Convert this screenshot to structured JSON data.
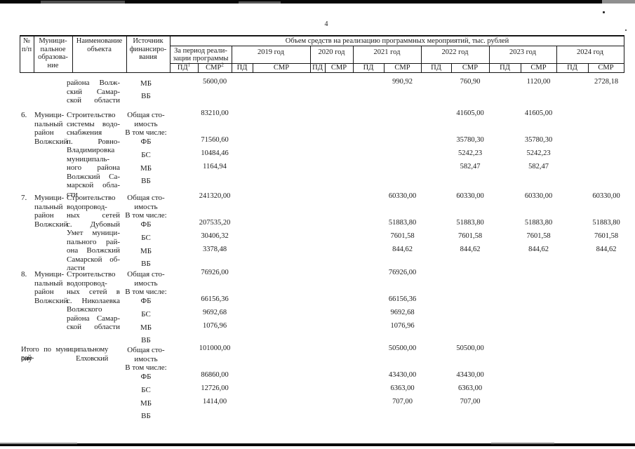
{
  "page": {
    "number": "4"
  },
  "table": {
    "header": {
      "amount_title": "Объем средств на реализацию программных мероприятий, тыс. рублей",
      "num": [
        "№",
        "п/п"
      ],
      "municipality": [
        "Муници-",
        "пальное",
        "образова-",
        "ние"
      ],
      "object": [
        "Наименование",
        "объекта"
      ],
      "source": [
        "Источник",
        "финансиро-",
        "вания"
      ],
      "period": [
        "За период реали-",
        "зации программы"
      ],
      "pd": "ПД",
      "pd_sup": "1",
      "smr": "СМР",
      "smr_sup": "2",
      "years": [
        "2019 год",
        "2020 год",
        "2021 год",
        "2022 год",
        "2023 год",
        "2024 год"
      ]
    },
    "groups": [
      {
        "continued": true,
        "object": [
          "района Волж-",
          "ский Самар-",
          "ской области"
        ],
        "finance": [
          {
            "slot": "mb",
            "label": [
              "МБ"
            ],
            "values": {
              "period": "5600,00",
              "y2021": "990,92",
              "y2022": "760,90",
              "y2023": "1120,00",
              "y2024": "2728,18"
            }
          },
          {
            "slot": "vb",
            "label": [
              "ВБ"
            ]
          }
        ]
      },
      {
        "num": "6.",
        "municipality": [
          "Муници-",
          "пальный",
          "район",
          "Волжский"
        ],
        "object": [
          "Строительство",
          "системы водо-",
          "снабжения",
          "п. Ровно-",
          "Владимировка",
          "муниципаль-",
          "ного района",
          "Волжский Са-",
          "марской обла-",
          "сти"
        ],
        "finance": [
          {
            "slot": "total",
            "label": [
              "Общая сто-",
              "имость"
            ],
            "values": {
              "period": "83210,00",
              "y2022": "41605,00",
              "y2023": "41605,00"
            }
          },
          {
            "slot": "incl",
            "label": [
              "В том числе:"
            ]
          },
          {
            "slot": "fb",
            "label": [
              "ФБ"
            ],
            "values": {
              "period": "71560,60",
              "y2022": "35780,30",
              "y2023": "35780,30"
            }
          },
          {
            "slot": "bs",
            "label": [
              "БС"
            ],
            "values": {
              "period": "10484,46",
              "y2022": "5242,23",
              "y2023": "5242,23"
            }
          },
          {
            "slot": "mb",
            "label": [
              "МБ"
            ],
            "values": {
              "period": "1164,94",
              "y2022": "582,47",
              "y2023": "582,47"
            }
          },
          {
            "slot": "vb",
            "label": [
              "ВБ"
            ]
          }
        ]
      },
      {
        "num": "7.",
        "municipality": [
          "Муници-",
          "пальный",
          "район",
          "Волжский"
        ],
        "object": [
          "Строительство",
          "водопровод-",
          "ных сетей",
          "с. Дубовый",
          "Умет муници-",
          "пального рай-",
          "она Волжский",
          "Самарской об-",
          "ласти"
        ],
        "finance": [
          {
            "slot": "total",
            "label": [
              "Общая сто-",
              "имость"
            ],
            "values": {
              "period": "241320,00",
              "y2021": "60330,00",
              "y2022": "60330,00",
              "y2023": "60330,00",
              "y2024": "60330,00"
            }
          },
          {
            "slot": "incl",
            "label": [
              "В том числе:"
            ]
          },
          {
            "slot": "fb",
            "label": [
              "ФБ"
            ],
            "values": {
              "period": "207535,20",
              "y2021": "51883,80",
              "y2022": "51883,80",
              "y2023": "51883,80",
              "y2024": "51883,80"
            }
          },
          {
            "slot": "bs",
            "label": [
              "БС"
            ],
            "values": {
              "period": "30406,32",
              "y2021": "7601,58",
              "y2022": "7601,58",
              "y2023": "7601,58",
              "y2024": "7601,58"
            }
          },
          {
            "slot": "mb",
            "label": [
              "МБ"
            ],
            "values": {
              "period": "3378,48",
              "y2021": "844,62",
              "y2022": "844,62",
              "y2023": "844,62",
              "y2024": "844,62"
            }
          },
          {
            "slot": "vb",
            "label": [
              "ВБ"
            ]
          }
        ]
      },
      {
        "num": "8.",
        "municipality": [
          "Муници-",
          "пальный",
          "район",
          "Волжский"
        ],
        "object": [
          "Строительство",
          "водопровод-",
          "ных сетей в",
          "с. Николаевка",
          "Волжского",
          "района Самар-",
          "ской области"
        ],
        "finance": [
          {
            "slot": "total",
            "label": [
              "Общая сто-",
              "имость"
            ],
            "values": {
              "period": "76926,00",
              "y2021": "76926,00"
            }
          },
          {
            "slot": "incl",
            "label": [
              "В том числе:"
            ]
          },
          {
            "slot": "fb",
            "label": [
              "ФБ"
            ],
            "values": {
              "period": "66156,36",
              "y2021": "66156,36"
            }
          },
          {
            "slot": "bs",
            "label": [
              "БС"
            ],
            "values": {
              "period": "9692,68",
              "y2021": "9692,68"
            }
          },
          {
            "slot": "mb",
            "label": [
              "МБ"
            ],
            "values": {
              "period": "1076,96",
              "y2021": "1076,96"
            }
          },
          {
            "slot": "vb",
            "label": [
              "ВБ"
            ]
          }
        ]
      },
      {
        "title": [
          "Итого по муниципальному рай-",
          "ону Елховский"
        ],
        "finance": [
          {
            "slot": "total",
            "label": [
              "Общая сто-",
              "имость"
            ],
            "values": {
              "period": "101000,00",
              "y2021": "50500,00",
              "y2022": "50500,00"
            }
          },
          {
            "slot": "incl",
            "label": [
              "В том числе:"
            ]
          },
          {
            "slot": "fb",
            "label": [
              "ФБ"
            ],
            "values": {
              "period": "86860,00",
              "y2021": "43430,00",
              "y2022": "43430,00"
            }
          },
          {
            "slot": "bs",
            "label": [
              "БС"
            ],
            "values": {
              "period": "12726,00",
              "y2021": "6363,00",
              "y2022": "6363,00"
            }
          },
          {
            "slot": "mb",
            "label": [
              "МБ"
            ],
            "values": {
              "period": "1414,00",
              "y2021": "707,00",
              "y2022": "707,00"
            }
          },
          {
            "slot": "vb",
            "label": [
              "ВБ"
            ]
          }
        ]
      }
    ]
  }
}
